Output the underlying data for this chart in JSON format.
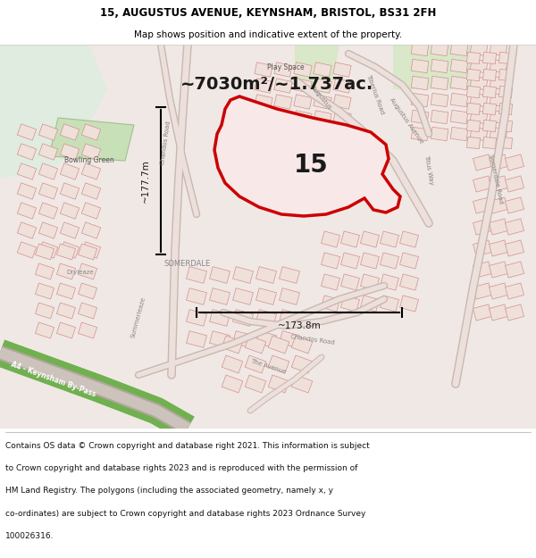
{
  "title_line1": "15, AUGUSTUS AVENUE, KEYNSHAM, BRISTOL, BS31 2FH",
  "title_line2": "Map shows position and indicative extent of the property.",
  "area_text": "~7030m²/~1.737ac.",
  "label_15": "15",
  "dim_vertical": "~177.7m",
  "dim_horizontal": "~173.8m",
  "footer_lines": [
    "Contains OS data © Crown copyright and database right 2021. This information is subject",
    "to Crown copyright and database rights 2023 and is reproduced with the permission of",
    "HM Land Registry. The polygons (including the associated geometry, namely x, y",
    "co-ordinates) are subject to Crown copyright and database rights 2023 Ordnance Survey",
    "100026316."
  ],
  "map_bg": "#f0e8e4",
  "block_fill": "#f0e0da",
  "block_edge": "#d09090",
  "road_outer": "#c8b8b0",
  "road_inner": "#ede0dc",
  "highlight_color": "#cc0000",
  "green_light": "#e0ece0",
  "green_bypass": "#80c060",
  "green_bowl": "#c8e0b8",
  "gray_block": "#d8d0cc",
  "footer_bg": "#ffffff",
  "title_bg": "#ffffff",
  "fig_width": 6.0,
  "fig_height": 6.25
}
